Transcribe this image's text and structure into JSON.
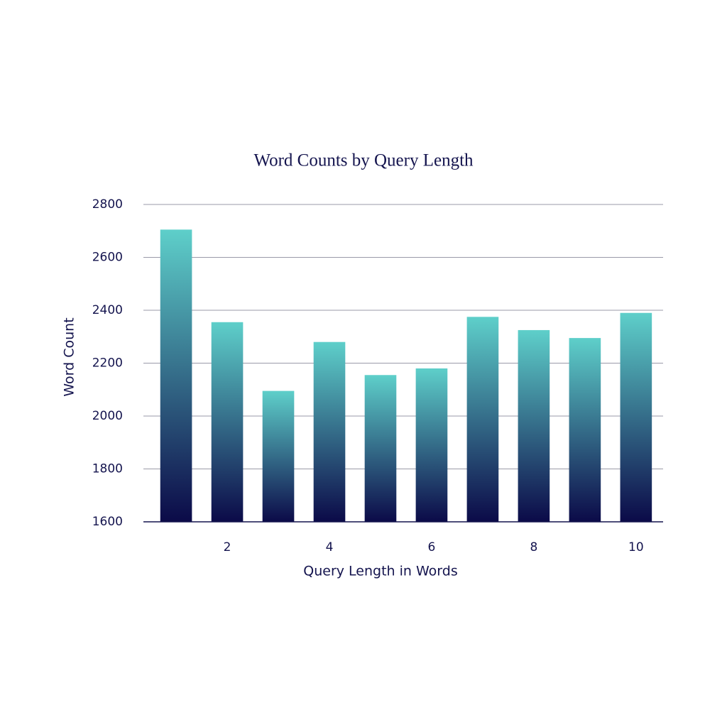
{
  "chart_data": {
    "type": "bar",
    "title": "Word Counts by Query Length",
    "x_label": "Query Length in Words",
    "y_label": "Word Count",
    "x": [
      1,
      2,
      3,
      4,
      5,
      6,
      7,
      8,
      9,
      10
    ],
    "values": [
      2705,
      2355,
      2095,
      2280,
      2155,
      2180,
      2375,
      2325,
      2295,
      2390
    ],
    "gradient": [
      "#5ecfca",
      "#0b0a48"
    ],
    "xlim": [
      0.36,
      10.53
    ],
    "xticks": [
      2,
      4,
      6,
      8,
      10
    ],
    "ylim": [
      1600,
      2800
    ],
    "yticks": [
      1600,
      1800,
      2000,
      2200,
      2400,
      2600,
      2800
    ],
    "grid": true
  }
}
